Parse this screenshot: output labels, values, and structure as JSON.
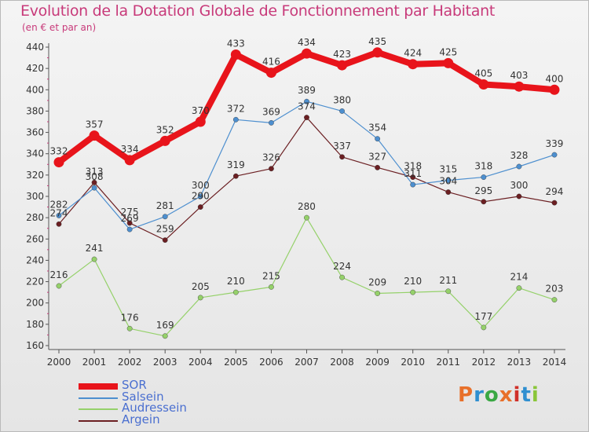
{
  "title": "Evolution de la Dotation Globale de Fonctionnement par Habitant",
  "subtitle": "(en € et par an)",
  "logo": {
    "text": "Proxiti",
    "colors": [
      "#e8702a",
      "#2f8fd0",
      "#3aa844",
      "#e8702a",
      "#d0302a",
      "#2f8fd0",
      "#8ac63a"
    ]
  },
  "chart_data": {
    "type": "line",
    "x": [
      "2000",
      "2001",
      "2002",
      "2003",
      "2004",
      "2005",
      "2006",
      "2007",
      "2008",
      "2009",
      "2010",
      "2011",
      "2012",
      "2013",
      "2014"
    ],
    "ylim": [
      160,
      440
    ],
    "yticks": [
      160,
      180,
      200,
      220,
      240,
      260,
      280,
      300,
      320,
      340,
      360,
      380,
      400,
      420,
      440
    ],
    "grid": false,
    "legend_position": "bottom-left",
    "series": [
      {
        "name": "SOR",
        "color": "#e8141b",
        "width": 8,
        "values": [
          332,
          357,
          334,
          352,
          370,
          433,
          416,
          434,
          423,
          435,
          424,
          425,
          405,
          403,
          400
        ],
        "labels": [
          "332",
          "357",
          "334",
          "352",
          "370",
          "433",
          "416",
          "434",
          "423",
          "435",
          "424",
          "425",
          "405",
          "403",
          "400"
        ]
      },
      {
        "name": "Salsein",
        "color": "#4d8fcf",
        "width": 1.2,
        "values": [
          282,
          308,
          269,
          281,
          300,
          372,
          369,
          389,
          380,
          354,
          311,
          315,
          318,
          328,
          339
        ],
        "labels": [
          "282",
          "308",
          "269",
          "281",
          "300",
          "372",
          "369",
          "389",
          "380",
          "354",
          "311",
          "315",
          "318",
          "328",
          "339"
        ]
      },
      {
        "name": "Audressein",
        "color": "#95d16a",
        "width": 1.2,
        "values": [
          216,
          241,
          176,
          169,
          205,
          210,
          215,
          280,
          224,
          209,
          210,
          211,
          177,
          214,
          203
        ],
        "labels": [
          "216",
          "241",
          "176",
          "169",
          "205",
          "210",
          "215",
          "280",
          "224",
          "209",
          "210",
          "211",
          "177",
          "214",
          "203"
        ]
      },
      {
        "name": "Argein",
        "color": "#6b1f22",
        "width": 1.2,
        "values": [
          274,
          313,
          275,
          259,
          290,
          319,
          326,
          374,
          337,
          327,
          318,
          304,
          295,
          300,
          294
        ],
        "labels": [
          "274",
          "313",
          "275",
          "259",
          "290",
          "319",
          "326",
          "374",
          "337",
          "327",
          "318",
          "304",
          "295",
          "300",
          "294"
        ]
      }
    ]
  }
}
